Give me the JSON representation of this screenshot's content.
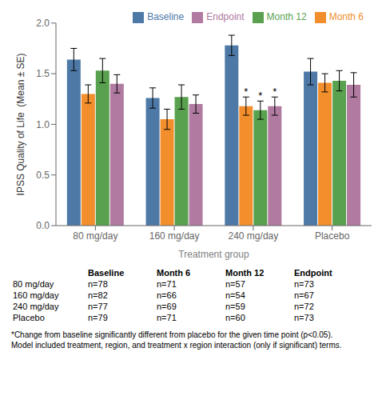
{
  "chart_data": {
    "type": "bar",
    "categories": [
      "80 mg/day",
      "160 mg/day",
      "240 mg/day",
      "Placebo"
    ],
    "series": [
      {
        "name": "Baseline",
        "color": "#4e79a7",
        "values": [
          1.64,
          1.26,
          1.78,
          1.52
        ],
        "errors": [
          0.11,
          0.1,
          0.1,
          0.13
        ],
        "significant": [
          false,
          false,
          false,
          false
        ]
      },
      {
        "name": "Month 6",
        "color": "#f28e2b",
        "values": [
          1.3,
          1.05,
          1.18,
          1.41
        ],
        "errors": [
          0.09,
          0.1,
          0.09,
          0.09
        ],
        "significant": [
          false,
          false,
          true,
          false
        ]
      },
      {
        "name": "Month 12",
        "color": "#59a14f",
        "values": [
          1.53,
          1.27,
          1.14,
          1.43
        ],
        "errors": [
          0.12,
          0.12,
          0.09,
          0.1
        ],
        "significant": [
          false,
          false,
          true,
          false
        ]
      },
      {
        "name": "Endpoint",
        "color": "#b07aa1",
        "values": [
          1.4,
          1.2,
          1.18,
          1.39
        ],
        "errors": [
          0.09,
          0.09,
          0.09,
          0.12
        ],
        "significant": [
          false,
          false,
          true,
          false
        ]
      }
    ],
    "significance_label": "*",
    "ylim": [
      0.0,
      2.0
    ],
    "yticks": [
      {
        "value": 0.0,
        "label": "0.0"
      },
      {
        "value": 0.5,
        "label": "0.5"
      },
      {
        "value": 1.0,
        "label": "1.0"
      },
      {
        "value": 1.5,
        "label": "1.5"
      },
      {
        "value": 2.0,
        "label": "2.0"
      }
    ],
    "ylabel": "IPSS Quality of Life  (Mean ± SE)",
    "xlabel": "Treatment group",
    "legend": "upper right",
    "grid": false,
    "table": {
      "columns": [
        "Baseline",
        "Month 6",
        "Month 12",
        "Endpoint"
      ],
      "rows": [
        [
          "80 mg/day",
          "n=78",
          "n=71",
          "n=57",
          "n=73"
        ],
        [
          "160 mg/day",
          "n=82",
          "n=66",
          "n=54",
          "n=67"
        ],
        [
          "240 mg/day",
          "n=77",
          "n=69",
          "n=59",
          "n=72"
        ],
        [
          "Placebo",
          "n=79",
          "n=71",
          "n=60",
          "n=73"
        ]
      ]
    },
    "footnote": "*Change from baseline significantly different from placebo for the given time point (p<0.05).\nModel included treatment, region, and treatment x region interaction (only if significant) terms."
  }
}
